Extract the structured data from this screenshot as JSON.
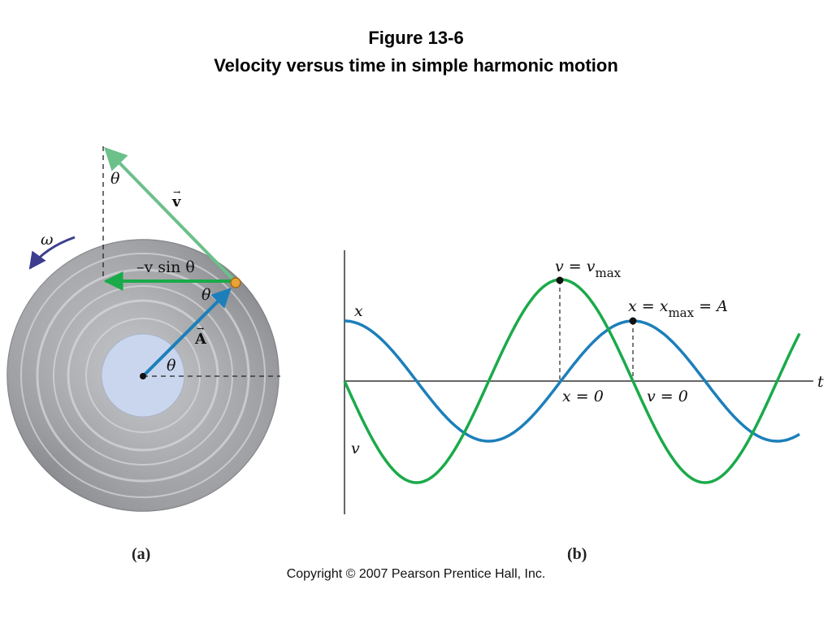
{
  "title": {
    "line1": "Figure 13-6",
    "line2": "Velocity versus time in simple harmonic motion"
  },
  "panel_a": {
    "label": "(a)",
    "omega_label": "ω",
    "theta_top": "θ",
    "theta_mid": "θ",
    "theta_center": "θ",
    "velocity_vector_label": "v",
    "vsin_label": "–v sin θ",
    "amplitude_vector_label": "A",
    "colors": {
      "velocity": "#6cc08a",
      "v_sin": "#1aaa4a",
      "amplitude": "#1c7fba",
      "omega_arrow": "#3d3d8f",
      "disc": "#a9abae",
      "center": "#c9d6ee",
      "particle": "#e8a33a"
    }
  },
  "panel_b": {
    "label": "(b)",
    "t_label": "t",
    "x_label": "x",
    "v_label": "v",
    "vmax_label": "v = v",
    "vmax_sub": "max",
    "xmax_label": "x = x",
    "xmax_sub": "max",
    "xmax_tail": " = A",
    "x0_label": "x = 0",
    "v0_label": "v = 0",
    "colors": {
      "x_curve": "#1c7fba",
      "v_curve": "#1aaa4a",
      "axis": "#333333"
    }
  },
  "copyright": "Copyright © 2007 Pearson Prentice Hall, Inc."
}
